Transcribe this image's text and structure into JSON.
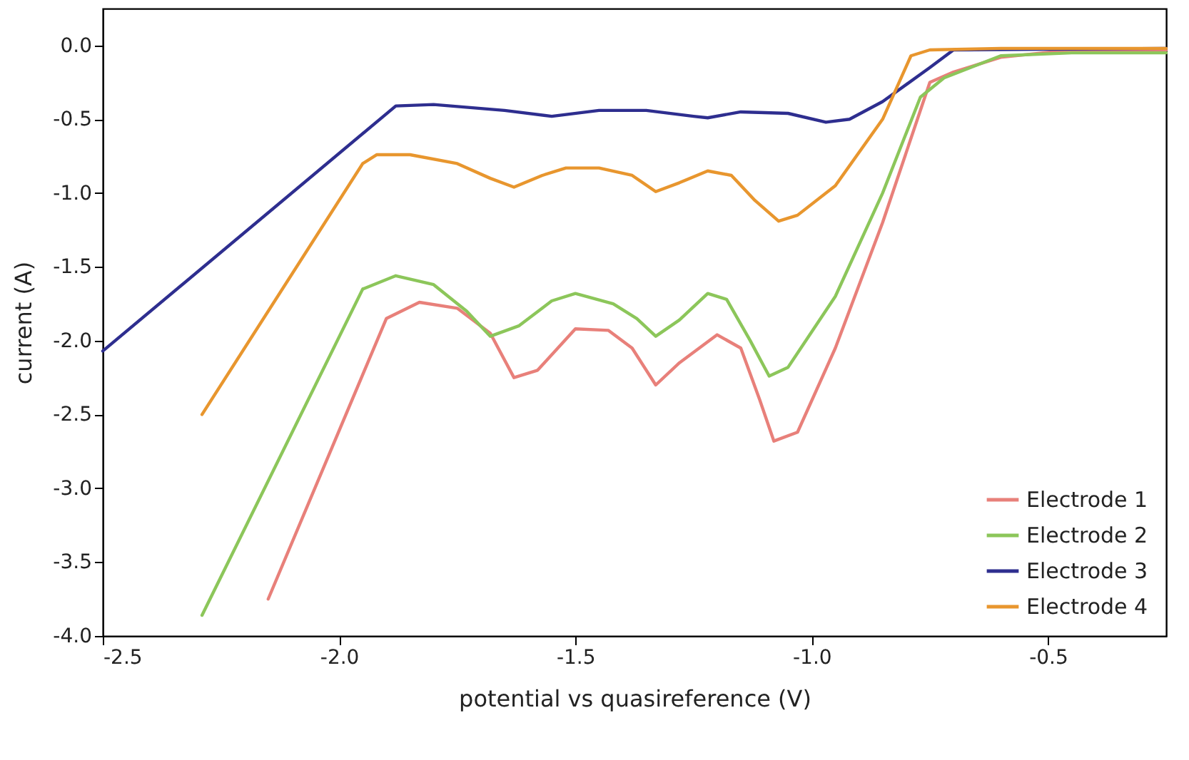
{
  "chart_data": {
    "type": "line",
    "xlabel": "potential vs quasireference (V)",
    "ylabel": "current (A)",
    "xlim": [
      -2.5,
      -0.25
    ],
    "xticks": [
      {
        "value": -2.5,
        "label": "-2.5"
      },
      {
        "value": -2.0,
        "label": "-2.0"
      },
      {
        "value": -1.5,
        "label": "-1.5"
      },
      {
        "value": -1.0,
        "label": "-1.0"
      },
      {
        "value": -0.5,
        "label": "-0.5"
      }
    ],
    "ylim": [
      -4.0,
      0.25
    ],
    "yticks": [
      {
        "value": -4.0,
        "label": "-4.0"
      },
      {
        "value": -3.5,
        "label": "-3.5"
      },
      {
        "value": -3.0,
        "label": "-3.0"
      },
      {
        "value": -2.5,
        "label": "-2.5"
      },
      {
        "value": -2.0,
        "label": "-2.0"
      },
      {
        "value": -1.5,
        "label": "-1.5"
      },
      {
        "value": -1.0,
        "label": "-1.0"
      },
      {
        "value": -0.5,
        "label": "-0.5"
      },
      {
        "value": 0.0,
        "label": "0.0"
      }
    ],
    "grid": false,
    "legend": "bottom right",
    "line_style": "solid",
    "marker": "none",
    "series": [
      {
        "name": "Electrode 1",
        "color": "#e8807a",
        "x": [
          -2.15,
          -1.9,
          -1.83,
          -1.75,
          -1.68,
          -1.63,
          -1.58,
          -1.5,
          -1.43,
          -1.38,
          -1.33,
          -1.28,
          -1.2,
          -1.15,
          -1.11,
          -1.08,
          -1.03,
          -0.95,
          -0.85,
          -0.75,
          -0.7,
          -0.6,
          -0.45,
          -0.25
        ],
        "values": [
          -3.75,
          -1.85,
          -1.74,
          -1.78,
          -1.95,
          -2.25,
          -2.2,
          -1.92,
          -1.93,
          -2.05,
          -2.3,
          -2.15,
          -1.96,
          -2.05,
          -2.4,
          -2.68,
          -2.62,
          -2.05,
          -1.2,
          -0.25,
          -0.18,
          -0.08,
          -0.03,
          -0.03
        ]
      },
      {
        "name": "Electrode 2",
        "color": "#8cc65a",
        "x": [
          -2.29,
          -1.95,
          -1.88,
          -1.8,
          -1.73,
          -1.68,
          -1.62,
          -1.55,
          -1.5,
          -1.42,
          -1.37,
          -1.33,
          -1.28,
          -1.22,
          -1.18,
          -1.13,
          -1.09,
          -1.05,
          -0.95,
          -0.85,
          -0.77,
          -0.72,
          -0.6,
          -0.45,
          -0.25
        ],
        "values": [
          -3.86,
          -1.65,
          -1.56,
          -1.62,
          -1.8,
          -1.97,
          -1.9,
          -1.73,
          -1.68,
          -1.75,
          -1.85,
          -1.97,
          -1.86,
          -1.68,
          -1.72,
          -2.0,
          -2.24,
          -2.18,
          -1.7,
          -1.0,
          -0.35,
          -0.22,
          -0.07,
          -0.05,
          -0.05
        ]
      },
      {
        "name": "Electrode 3",
        "color": "#2e2e8f",
        "x": [
          -2.5,
          -1.88,
          -1.8,
          -1.65,
          -1.55,
          -1.45,
          -1.35,
          -1.25,
          -1.22,
          -1.15,
          -1.05,
          -0.97,
          -0.92,
          -0.85,
          -0.75,
          -0.7,
          -0.25
        ],
        "values": [
          -2.07,
          -0.41,
          -0.4,
          -0.44,
          -0.48,
          -0.44,
          -0.44,
          -0.48,
          -0.49,
          -0.45,
          -0.46,
          -0.52,
          -0.5,
          -0.38,
          -0.15,
          -0.03,
          -0.02
        ]
      },
      {
        "name": "Electrode 4",
        "color": "#e8962e",
        "x": [
          -2.29,
          -1.95,
          -1.92,
          -1.85,
          -1.75,
          -1.68,
          -1.63,
          -1.57,
          -1.52,
          -1.45,
          -1.38,
          -1.33,
          -1.28,
          -1.22,
          -1.17,
          -1.12,
          -1.07,
          -1.03,
          -0.95,
          -0.85,
          -0.79,
          -0.75,
          -0.6,
          -0.25
        ],
        "values": [
          -2.5,
          -0.8,
          -0.74,
          -0.74,
          -0.8,
          -0.9,
          -0.96,
          -0.88,
          -0.83,
          -0.83,
          -0.88,
          -0.99,
          -0.93,
          -0.85,
          -0.88,
          -1.05,
          -1.19,
          -1.15,
          -0.95,
          -0.5,
          -0.07,
          -0.03,
          -0.02,
          -0.02
        ]
      }
    ]
  }
}
